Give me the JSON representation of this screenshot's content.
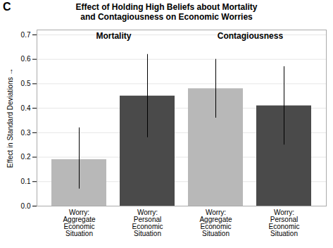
{
  "chart_data": {
    "type": "bar",
    "title": "Effect of Holding High Beliefs about Mortality\nand Contagiousness on Economic Worries",
    "annotations": [
      "C"
    ],
    "ylabel": "Effect in Standard Deviations",
    "categories": [
      "Worry:\nAggregate\nEconomic\nSituation",
      "Worry:\nPersonal\nEconomic\nSituation",
      "Worry:\nAggregate\nEconomic\nSituation",
      "Worry:\nPersonal\nEconomic\nSituation"
    ],
    "groups": [
      "Mortality",
      "Mortality",
      "Contagiousness",
      "Contagiousness"
    ],
    "values": [
      0.19,
      0.45,
      0.48,
      0.41
    ],
    "error_lower": [
      0.07,
      0.28,
      0.36,
      0.25
    ],
    "error_upper": [
      0.32,
      0.62,
      0.6,
      0.57
    ],
    "colors": [
      "#b8b8b8",
      "#4a4a4a",
      "#b8b8b8",
      "#4a4a4a"
    ],
    "ylim": [
      0,
      0.72
    ],
    "yticks": [
      {
        "value": 0.0,
        "label": "0.0"
      },
      0.1,
      0.2,
      0.3,
      0.4,
      0.5,
      0.6,
      0.7
    ],
    "grid": true
  }
}
